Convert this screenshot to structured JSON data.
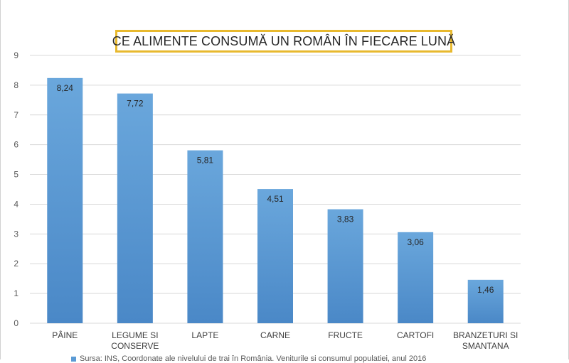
{
  "chart_data": {
    "type": "bar",
    "title": "CE ALIMENTE CONSUMĂ UN ROMÂN ÎN FIECARE LUNĂ",
    "categories": [
      [
        "PÂINE"
      ],
      [
        "LEGUME SI",
        "CONSERVE"
      ],
      [
        "LAPTE"
      ],
      [
        "CARNE"
      ],
      [
        "FRUCTE"
      ],
      [
        "CARTOFI"
      ],
      [
        "BRANZETURI SI",
        "SMANTANA"
      ]
    ],
    "values": [
      8.24,
      7.72,
      5.81,
      4.51,
      3.83,
      3.06,
      1.46
    ],
    "data_labels": [
      "8,24",
      "7,72",
      "5,81",
      "4,51",
      "3,83",
      "3,06",
      "1,46"
    ],
    "y_ticks": [
      "0",
      "1",
      "2",
      "3",
      "4",
      "5",
      "6",
      "7",
      "8",
      "9"
    ],
    "ylim": [
      0,
      9
    ],
    "grid": true,
    "legend_text": "Sursa: INS, Coordonate ale nivelului de trai în România. Veniturile si consumul populatiei, anul 2016",
    "colors": {
      "bar": "#5b9bd5",
      "bar_dark": "#4a88c7",
      "grid": "#d9d9d9",
      "title_border": "#e8b92e"
    }
  }
}
